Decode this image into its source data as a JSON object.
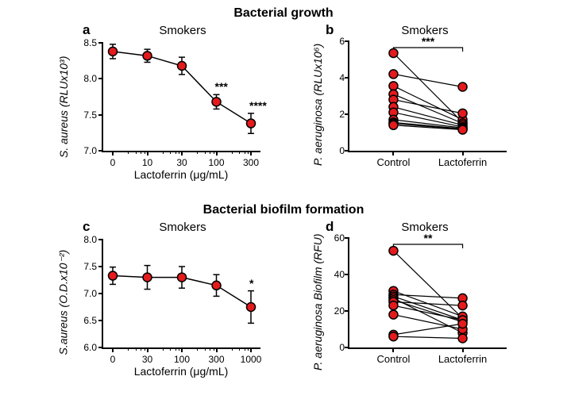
{
  "sections": {
    "growth": "Bacterial growth",
    "biofilm": "Bacterial biofilm formation"
  },
  "letters": {
    "a": "a",
    "b": "b",
    "c": "c",
    "d": "d"
  },
  "common": {
    "subtitle": "Smokers",
    "marker_color": "#e41a1c",
    "marker_stroke": "#000000"
  },
  "a": {
    "ylabel": "S. aureus (RLUx10³)",
    "xlabel": "Lactoferrin (μg/mL)",
    "ylim": [
      7.0,
      8.5
    ],
    "yticks": [
      7.0,
      7.5,
      8.0,
      8.5
    ],
    "xticks": [
      0,
      10,
      30,
      100,
      300
    ],
    "xtick_labels": [
      "0",
      "10",
      "30",
      "100",
      "300"
    ],
    "minor_between": 1,
    "points": [
      {
        "x": 0,
        "y": 8.38,
        "eu": 0.1,
        "el": 0.1,
        "sig": ""
      },
      {
        "x": 10,
        "y": 8.32,
        "eu": 0.09,
        "el": 0.09,
        "sig": ""
      },
      {
        "x": 30,
        "y": 8.18,
        "eu": 0.12,
        "el": 0.12,
        "sig": ""
      },
      {
        "x": 100,
        "y": 7.68,
        "eu": 0.1,
        "el": 0.1,
        "sig": "***"
      },
      {
        "x": 300,
        "y": 7.38,
        "eu": 0.14,
        "el": 0.14,
        "sig": "****"
      }
    ]
  },
  "b": {
    "ylabel": "P. aeruginosa (RLUx10⁶)",
    "ylim": [
      0,
      6
    ],
    "yticks": [
      0,
      2,
      4,
      6
    ],
    "cats": [
      "Control",
      "Lactoferrin"
    ],
    "sig": "***",
    "pairs": [
      [
        5.35,
        1.55
      ],
      [
        4.2,
        3.5
      ],
      [
        3.55,
        1.7
      ],
      [
        3.1,
        1.5
      ],
      [
        2.8,
        2.05
      ],
      [
        2.4,
        1.4
      ],
      [
        2.1,
        1.3
      ],
      [
        1.7,
        1.25
      ],
      [
        1.55,
        1.2
      ],
      [
        1.48,
        1.18
      ],
      [
        1.4,
        1.15
      ]
    ]
  },
  "c": {
    "ylabel": "S.aureus (O.D.x10⁻²)",
    "xlabel": "Lactoferrin (μg/mL)",
    "ylim": [
      6.0,
      8.0
    ],
    "yticks": [
      6.0,
      6.5,
      7.0,
      7.5,
      8.0
    ],
    "xticks": [
      0,
      30,
      100,
      300,
      1000
    ],
    "xtick_labels": [
      "0",
      "30",
      "100",
      "300",
      "1000"
    ],
    "minor_between": 1,
    "points": [
      {
        "x": 0,
        "y": 7.33,
        "eu": 0.16,
        "el": 0.16,
        "sig": ""
      },
      {
        "x": 30,
        "y": 7.3,
        "eu": 0.22,
        "el": 0.22,
        "sig": ""
      },
      {
        "x": 100,
        "y": 7.3,
        "eu": 0.2,
        "el": 0.2,
        "sig": ""
      },
      {
        "x": 300,
        "y": 7.15,
        "eu": 0.2,
        "el": 0.2,
        "sig": ""
      },
      {
        "x": 1000,
        "y": 6.75,
        "eu": 0.3,
        "el": 0.3,
        "sig": "*"
      }
    ]
  },
  "d": {
    "ylabel": "P. aeruginosa Biofilm (RFU)",
    "ylim": [
      0,
      60
    ],
    "yticks": [
      0,
      20,
      40,
      60
    ],
    "cats": [
      "Control",
      "Lactoferrin"
    ],
    "sig": "**",
    "pairs": [
      [
        53,
        16
      ],
      [
        31,
        17
      ],
      [
        29,
        27
      ],
      [
        28,
        15
      ],
      [
        27,
        8
      ],
      [
        26,
        14
      ],
      [
        25,
        23
      ],
      [
        23,
        15
      ],
      [
        18,
        10
      ],
      [
        7,
        13
      ],
      [
        6,
        5
      ]
    ]
  },
  "style": {
    "marker_r": 5.5
  }
}
